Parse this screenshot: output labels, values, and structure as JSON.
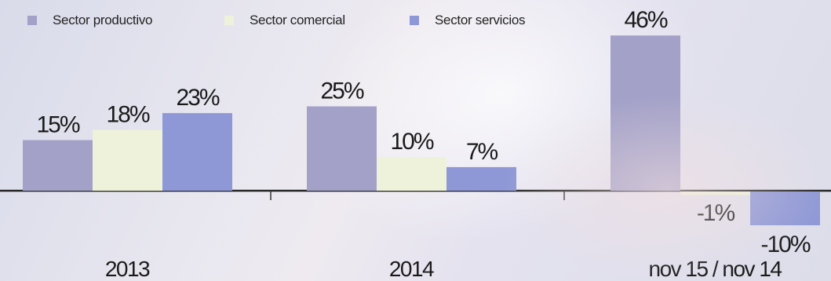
{
  "chart_data": {
    "type": "bar",
    "categories": [
      "2013",
      "2014",
      "nov 15 / nov 14"
    ],
    "series": [
      {
        "name": "Sector productivo",
        "color": "#a3a1c8",
        "values": [
          15,
          25,
          46
        ]
      },
      {
        "name": "Sector comercial",
        "color": "#eef2da",
        "values": [
          18,
          10,
          -1
        ]
      },
      {
        "name": "Sector servicios",
        "color": "#8e98d6",
        "values": [
          23,
          7,
          -10
        ]
      }
    ],
    "data_labels": [
      [
        "15%",
        "25%",
        "46%"
      ],
      [
        "18%",
        "10%",
        "-1%"
      ],
      [
        "23%",
        "7%",
        "-10%"
      ]
    ],
    "legend_position": "top",
    "grid": false
  }
}
